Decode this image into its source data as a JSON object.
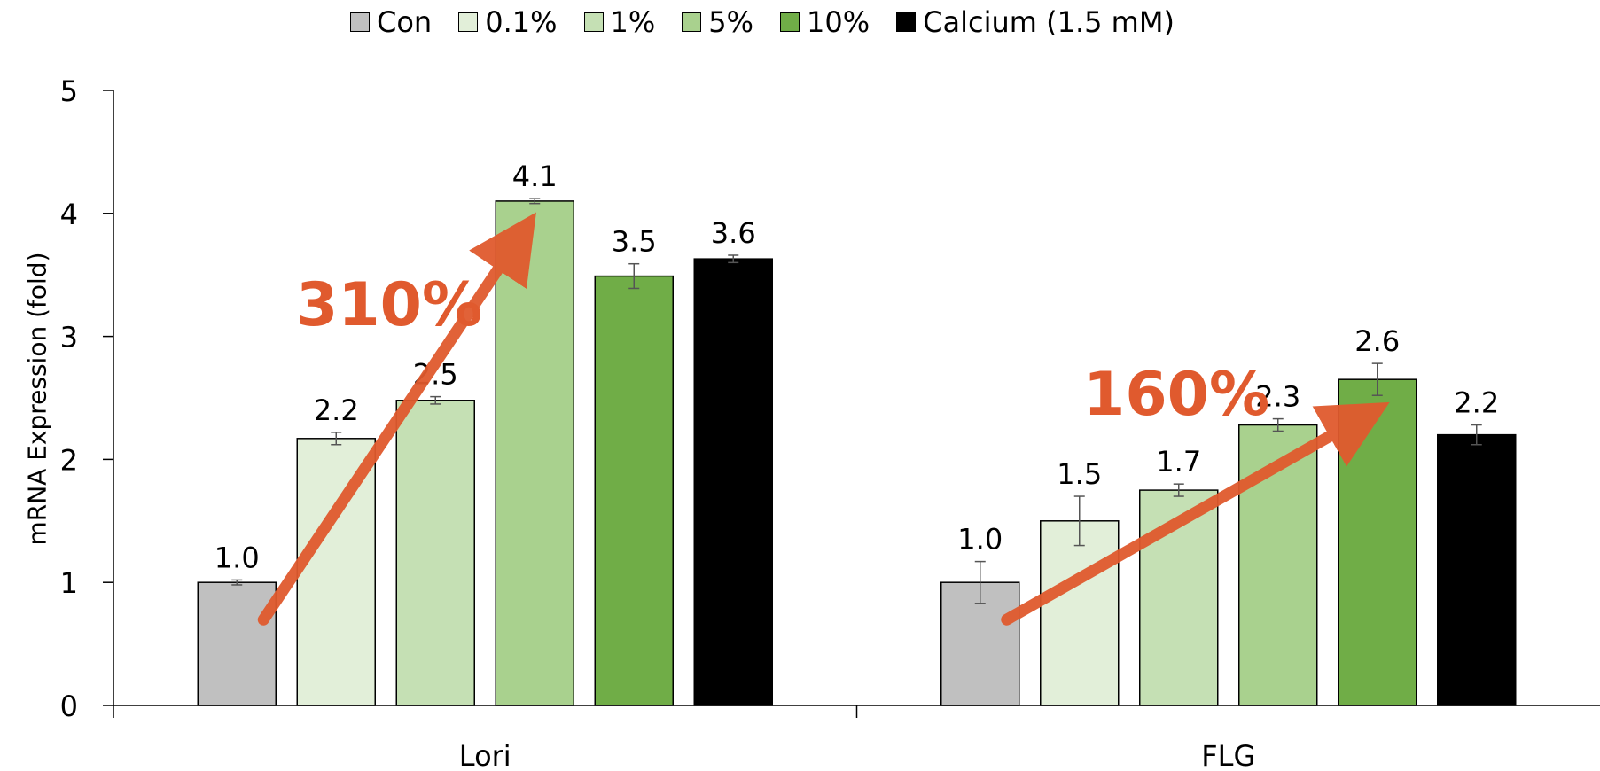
{
  "chart_data": {
    "type": "bar",
    "title": "",
    "xlabel": "",
    "ylabel": "mRNA Expression (fold)",
    "ylim": [
      0,
      5
    ],
    "yticks": [
      "0",
      "1",
      "2",
      "3",
      "4",
      "5"
    ],
    "grid": false,
    "legend_position": "top",
    "categories": [
      "Lori",
      "FLG"
    ],
    "series": [
      {
        "name": "Con",
        "color": "#c0c0c0",
        "values": [
          1.0,
          1.0
        ],
        "errors": [
          0.02,
          0.17
        ],
        "labels": [
          "1.0",
          "1.0"
        ]
      },
      {
        "name": "0.1%",
        "color": "#e2efd9",
        "values": [
          2.17,
          1.5
        ],
        "errors": [
          0.05,
          0.2
        ],
        "labels": [
          "2.2",
          "1.5"
        ]
      },
      {
        "name": "1%",
        "color": "#c5e0b4",
        "values": [
          2.48,
          1.75
        ],
        "errors": [
          0.03,
          0.05
        ],
        "labels": [
          "2.5",
          "1.7"
        ]
      },
      {
        "name": "5%",
        "color": "#a9d18e",
        "values": [
          4.1,
          2.28
        ],
        "errors": [
          0.02,
          0.05
        ],
        "labels": [
          "4.1",
          "2.3"
        ]
      },
      {
        "name": "10%",
        "color": "#70ad47",
        "values": [
          3.49,
          2.65
        ],
        "errors": [
          0.1,
          0.13
        ],
        "labels": [
          "3.5",
          "2.6"
        ]
      },
      {
        "name": "Calcium (1.5 mM)",
        "color": "#000000",
        "values": [
          3.63,
          2.2
        ],
        "errors": [
          0.03,
          0.08
        ],
        "labels": [
          "3.6",
          "2.2"
        ]
      }
    ],
    "annotations": [
      {
        "text": "310%",
        "color": "#e05a2e",
        "group": "Lori",
        "from_value": 1.0,
        "to_value": 4.1
      },
      {
        "text": "160%",
        "color": "#e05a2e",
        "group": "FLG",
        "from_value": 1.0,
        "to_value": 2.6
      }
    ]
  }
}
